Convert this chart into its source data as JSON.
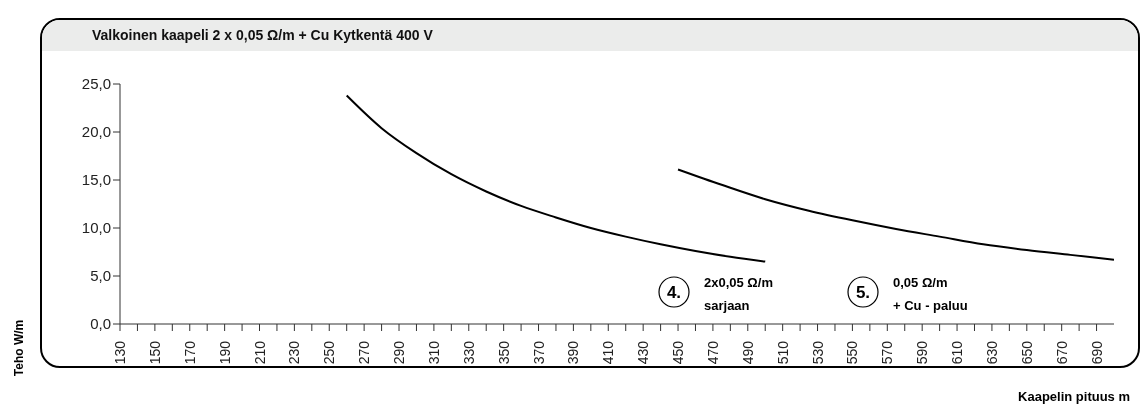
{
  "chart_data": {
    "type": "line",
    "title": "Valkoinen kaapeli 2 x 0,05 Ω/m + Cu  Kytkentä 400 V",
    "xlabel": "Kaapelin pituus m",
    "ylabel": "Teho W/m",
    "marker": "none",
    "line_style": "solid",
    "xlim": [
      130,
      700
    ],
    "xticks": [
      130,
      {
        "value": 140,
        "label": null
      },
      150,
      {
        "value": 160,
        "label": null
      },
      170,
      {
        "value": 180,
        "label": null
      },
      190,
      {
        "value": 200,
        "label": null
      },
      210,
      {
        "value": 220,
        "label": null
      },
      230,
      {
        "value": 240,
        "label": null
      },
      250,
      {
        "value": 260,
        "label": null
      },
      270,
      {
        "value": 280,
        "label": null
      },
      290,
      {
        "value": 300,
        "label": null
      },
      310,
      {
        "value": 320,
        "label": null
      },
      330,
      {
        "value": 340,
        "label": null
      },
      350,
      {
        "value": 360,
        "label": null
      },
      370,
      {
        "value": 380,
        "label": null
      },
      390,
      {
        "value": 400,
        "label": null
      },
      410,
      {
        "value": 420,
        "label": null
      },
      430,
      {
        "value": 440,
        "label": null
      },
      450,
      {
        "value": 460,
        "label": null
      },
      470,
      {
        "value": 480,
        "label": null
      },
      490,
      {
        "value": 500,
        "label": null
      },
      510,
      {
        "value": 520,
        "label": null
      },
      530,
      {
        "value": 540,
        "label": null
      },
      550,
      {
        "value": 560,
        "label": null
      },
      570,
      {
        "value": 580,
        "label": null
      },
      590,
      {
        "value": 600,
        "label": null
      },
      610,
      {
        "value": 620,
        "label": null
      },
      630,
      {
        "value": 640,
        "label": null
      },
      650,
      {
        "value": 660,
        "label": null
      },
      670,
      {
        "value": 680,
        "label": null
      },
      690
    ],
    "ylim": [
      0,
      25
    ],
    "yticks": [
      {
        "value": 0,
        "label": "0,0"
      },
      {
        "value": 5,
        "label": "5,0"
      },
      {
        "value": 10,
        "label": "10,0"
      },
      {
        "value": 15,
        "label": "15,0"
      },
      {
        "value": 20,
        "label": "20,0"
      },
      {
        "value": 25,
        "label": "25,0"
      }
    ],
    "series": [
      {
        "color": "#000000",
        "x": [
          260,
          280,
          300,
          320,
          340,
          360,
          380,
          400,
          420,
          440,
          460,
          480,
          500
        ],
        "values": [
          23.8,
          20.4,
          17.8,
          15.6,
          13.8,
          12.3,
          11.1,
          10.0,
          9.1,
          8.3,
          7.6,
          7.0,
          6.5
        ]
      },
      {
        "color": "#000000",
        "x": [
          450,
          475,
          500,
          525,
          550,
          575,
          600,
          625,
          650,
          675,
          700
        ],
        "values": [
          16.1,
          14.5,
          13.0,
          11.8,
          10.8,
          9.9,
          9.1,
          8.3,
          7.7,
          7.2,
          6.7
        ]
      }
    ],
    "annotations": [
      "4.",
      "2x0,05 Ω/m",
      "sarjaan",
      "5.",
      "0,05 Ω/m",
      "+ Cu - paluu"
    ]
  }
}
